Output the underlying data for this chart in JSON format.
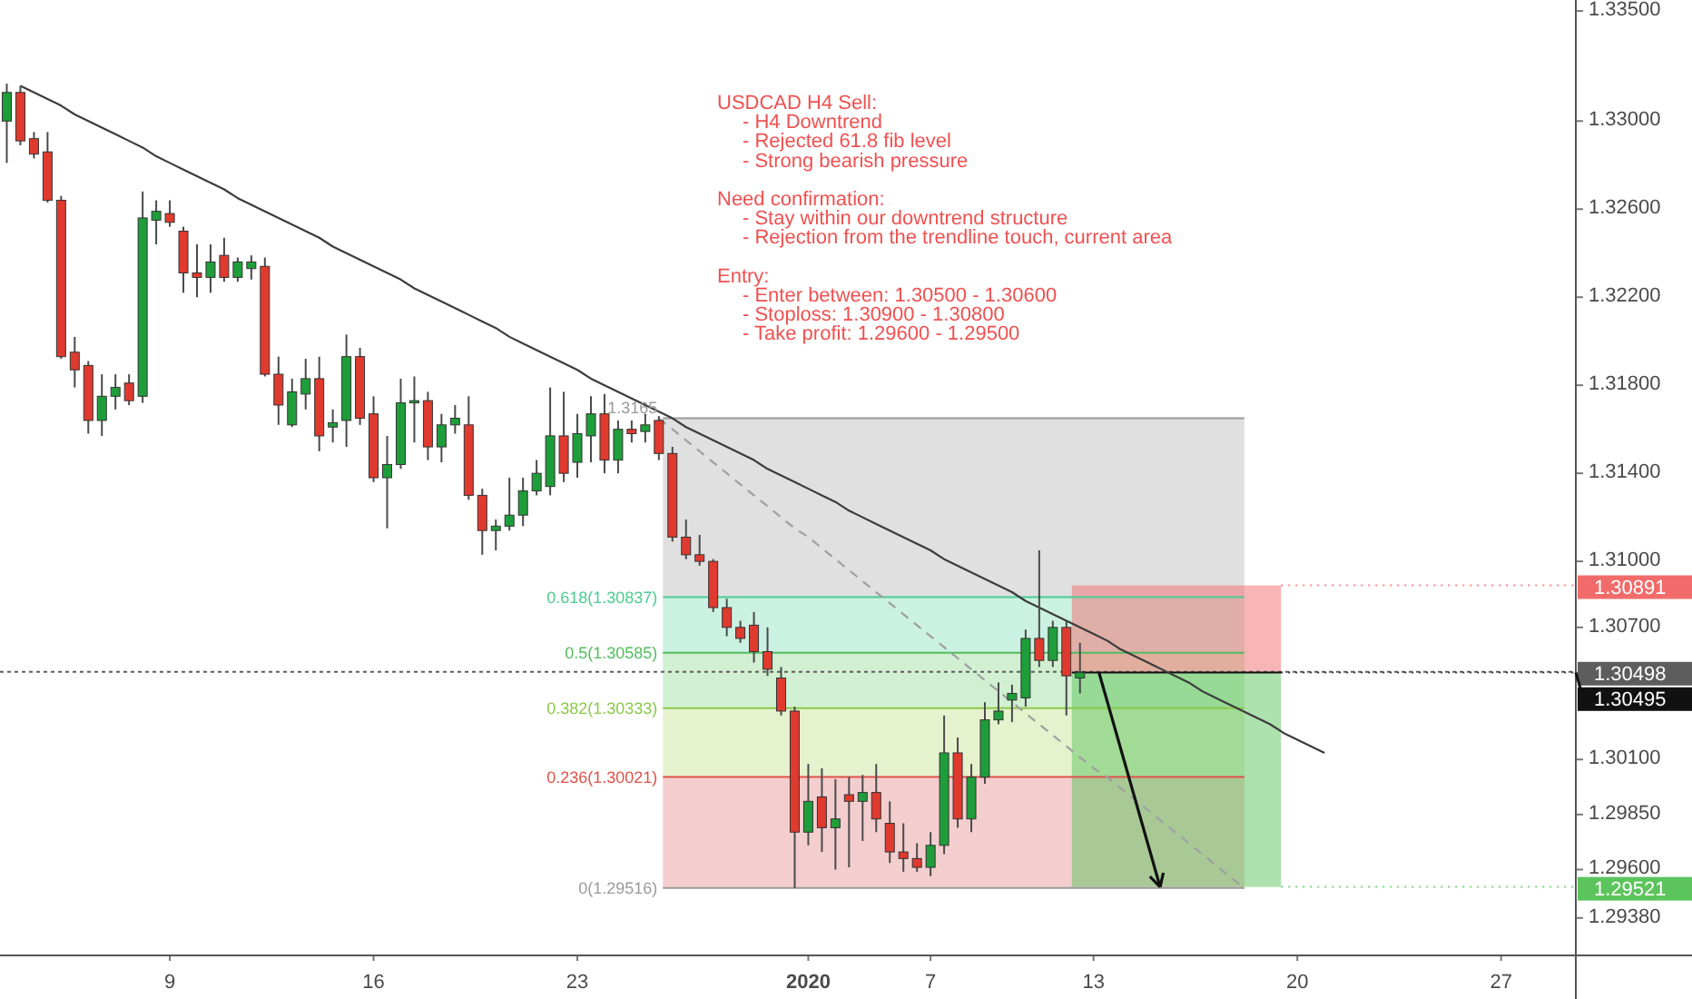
{
  "chart_data": {
    "type": "candlestick",
    "categories": [
      null,
      null,
      null,
      null,
      null,
      null,
      null,
      null,
      null,
      null,
      null,
      null,
      "9",
      null,
      null,
      null,
      null,
      null,
      null,
      null,
      null,
      null,
      null,
      null,
      null,
      null,
      null,
      "16",
      null,
      null,
      null,
      null,
      null,
      null,
      null,
      null,
      null,
      null,
      null,
      null,
      null,
      null,
      "23",
      null,
      null,
      null,
      null,
      null,
      null,
      null,
      null,
      null,
      null,
      null,
      null,
      null,
      null,
      null,
      null,
      "2020",
      null,
      null,
      null,
      null,
      null,
      null,
      null,
      null,
      "7",
      null,
      null,
      null,
      null,
      null,
      null,
      null,
      null,
      null,
      null,
      null,
      "13",
      null,
      null,
      null,
      null,
      null,
      null,
      null,
      null,
      null,
      null,
      null,
      null,
      null,
      null,
      "20",
      null,
      null,
      null,
      null,
      null,
      null,
      null,
      null,
      null,
      null,
      null,
      null,
      null,
      null,
      "27",
      null,
      null,
      null,
      null,
      null
    ],
    "ohlc": [
      [
        1.33,
        1.3317,
        1.3281,
        1.3313
      ],
      [
        1.3313,
        1.3316,
        1.3289,
        1.3291
      ],
      [
        1.3292,
        1.3295,
        1.3283,
        1.3285
      ],
      [
        1.3286,
        1.3295,
        1.3263,
        1.3264
      ],
      [
        1.3264,
        1.3266,
        1.3192,
        1.3193
      ],
      [
        1.3195,
        1.3202,
        1.3179,
        1.3187
      ],
      [
        1.3189,
        1.3191,
        1.3158,
        1.3164
      ],
      [
        1.3164,
        1.3185,
        1.3157,
        1.3175
      ],
      [
        1.3175,
        1.3185,
        1.3169,
        1.3179
      ],
      [
        1.3181,
        1.3185,
        1.3171,
        1.3173
      ],
      [
        1.3175,
        1.3268,
        1.3172,
        1.3256
      ],
      [
        1.3255,
        1.3264,
        1.3244,
        1.3259
      ],
      [
        1.3258,
        1.3264,
        1.3252,
        1.3254
      ],
      [
        1.325,
        1.3252,
        1.3222,
        1.3231
      ],
      [
        1.3231,
        1.3244,
        1.322,
        1.3229
      ],
      [
        1.3229,
        1.3244,
        1.3222,
        1.3236
      ],
      [
        1.3239,
        1.3247,
        1.3227,
        1.3229
      ],
      [
        1.3229,
        1.3238,
        1.3227,
        1.3236
      ],
      [
        1.3233,
        1.3239,
        1.3228,
        1.3236
      ],
      [
        1.3234,
        1.3238,
        1.3184,
        1.3185
      ],
      [
        1.3185,
        1.3193,
        1.3162,
        1.3171
      ],
      [
        1.3162,
        1.3183,
        1.3161,
        1.3177
      ],
      [
        1.3176,
        1.3192,
        1.3169,
        1.3183
      ],
      [
        1.3183,
        1.3193,
        1.315,
        1.3157
      ],
      [
        1.3161,
        1.3169,
        1.3154,
        1.3163
      ],
      [
        1.3164,
        1.3203,
        1.3152,
        1.3193
      ],
      [
        1.3193,
        1.3197,
        1.3162,
        1.3165
      ],
      [
        1.3167,
        1.3175,
        1.3136,
        1.3138
      ],
      [
        1.3138,
        1.3157,
        1.3115,
        1.3144
      ],
      [
        1.3144,
        1.3183,
        1.3142,
        1.3172
      ],
      [
        1.3172,
        1.3184,
        1.3154,
        1.3173
      ],
      [
        1.3173,
        1.3177,
        1.3146,
        1.3152
      ],
      [
        1.3152,
        1.3167,
        1.3145,
        1.3162
      ],
      [
        1.3162,
        1.3171,
        1.3158,
        1.3165
      ],
      [
        1.3162,
        1.3175,
        1.3128,
        1.313
      ],
      [
        1.313,
        1.3133,
        1.3103,
        1.3114
      ],
      [
        1.3114,
        1.3119,
        1.3105,
        1.3116
      ],
      [
        1.3116,
        1.3138,
        1.3114,
        1.3121
      ],
      [
        1.3121,
        1.3138,
        1.3116,
        1.3132
      ],
      [
        1.3132,
        1.3146,
        1.313,
        1.314
      ],
      [
        1.3134,
        1.3179,
        1.313,
        1.3157
      ],
      [
        1.3157,
        1.3177,
        1.3136,
        1.314
      ],
      [
        1.3145,
        1.3167,
        1.3138,
        1.3158
      ],
      [
        1.3157,
        1.3175,
        1.3145,
        1.3167
      ],
      [
        1.3167,
        1.3176,
        1.314,
        1.3146
      ],
      [
        1.3146,
        1.3164,
        1.314,
        1.316
      ],
      [
        1.316,
        1.3164,
        1.3154,
        1.3158
      ],
      [
        1.3159,
        1.3167,
        1.3154,
        1.3162
      ],
      [
        1.3164,
        1.3166,
        1.3146,
        1.3149
      ],
      [
        1.3149,
        1.3152,
        1.3109,
        1.3111
      ],
      [
        1.3111,
        1.3119,
        1.3101,
        1.3103
      ],
      [
        1.3103,
        1.3112,
        1.3098,
        1.31
      ],
      [
        1.31,
        1.3101,
        1.3077,
        1.3079
      ],
      [
        1.3079,
        1.3083,
        1.3066,
        1.307
      ],
      [
        1.307,
        1.3073,
        1.3063,
        1.3065
      ],
      [
        1.3071,
        1.3077,
        1.3054,
        1.3059
      ],
      [
        1.3059,
        1.307,
        1.3048,
        1.3051
      ],
      [
        1.3047,
        1.3052,
        1.303,
        1.3032
      ],
      [
        1.3032,
        1.3034,
        1.29516,
        1.2977
      ],
      [
        1.2977,
        1.3008,
        1.2971,
        1.2991
      ],
      [
        1.2993,
        1.3006,
        1.2968,
        1.2979
      ],
      [
        1.2979,
        1.3001,
        1.296,
        1.2983
      ],
      [
        1.2994,
        1.3002,
        1.2961,
        1.2991
      ],
      [
        1.2991,
        1.3003,
        1.2973,
        1.2995
      ],
      [
        1.2995,
        1.3008,
        1.2977,
        1.2983
      ],
      [
        1.2981,
        1.2991,
        1.2963,
        1.2968
      ],
      [
        1.2968,
        1.2981,
        1.2959,
        1.2965
      ],
      [
        1.2965,
        1.2972,
        1.2959,
        1.2961
      ],
      [
        1.2961,
        1.2977,
        1.2957,
        1.2971
      ],
      [
        1.2971,
        1.303,
        1.2967,
        1.3013
      ],
      [
        1.3013,
        1.302,
        1.2979,
        1.2983
      ],
      [
        1.2983,
        1.3008,
        1.2977,
        1.3002
      ],
      [
        1.3002,
        1.3036,
        1.2999,
        1.3028
      ],
      [
        1.3028,
        1.3045,
        1.3026,
        1.3032
      ],
      [
        1.3037,
        1.3044,
        1.3027,
        1.304
      ],
      [
        1.3038,
        1.3069,
        1.3034,
        1.3065
      ],
      [
        1.3065,
        1.3105,
        1.3052,
        1.3055
      ],
      [
        1.3055,
        1.3073,
        1.3052,
        1.307
      ],
      [
        1.307,
        1.3073,
        1.303,
        1.3048
      ],
      [
        1.3047,
        1.3063,
        1.304,
        1.30495
      ],
      null,
      null,
      null,
      null,
      null,
      null,
      null,
      null,
      null,
      null,
      null,
      null,
      null,
      null,
      null,
      null,
      null,
      null,
      null,
      null,
      null,
      null,
      null,
      null,
      null,
      null,
      null,
      null,
      null,
      null,
      null,
      null,
      null,
      null,
      null,
      null
    ],
    "colors": [
      "#1e9e3a",
      "#e03a2f",
      "#e03a2f",
      "#e03a2f",
      "#e03a2f",
      "#e03a2f",
      "#e03a2f",
      "#1e9e3a",
      "#1e9e3a",
      "#e03a2f",
      "#1e9e3a",
      "#1e9e3a",
      "#e03a2f",
      "#e03a2f",
      "#e03a2f",
      "#1e9e3a",
      "#e03a2f",
      "#1e9e3a",
      "#1e9e3a",
      "#e03a2f",
      "#e03a2f",
      "#1e9e3a",
      "#1e9e3a",
      "#e03a2f",
      "#1e9e3a",
      "#1e9e3a",
      "#e03a2f",
      "#e03a2f",
      "#1e9e3a",
      "#1e9e3a",
      "#1e9e3a",
      "#e03a2f",
      "#1e9e3a",
      "#1e9e3a",
      "#e03a2f",
      "#e03a2f",
      "#1e9e3a",
      "#1e9e3a",
      "#1e9e3a",
      "#1e9e3a",
      "#1e9e3a",
      "#e03a2f",
      "#1e9e3a",
      "#1e9e3a",
      "#e03a2f",
      "#1e9e3a",
      "#e03a2f",
      "#1e9e3a",
      "#e03a2f",
      "#e03a2f",
      "#e03a2f",
      "#e03a2f",
      "#e03a2f",
      "#e03a2f",
      "#e03a2f",
      "#e03a2f",
      "#e03a2f",
      "#e03a2f",
      "#e03a2f",
      "#1e9e3a",
      "#e03a2f",
      "#1e9e3a",
      "#e03a2f",
      "#1e9e3a",
      "#e03a2f",
      "#e03a2f",
      "#e03a2f",
      "#e03a2f",
      "#1e9e3a",
      "#1e9e3a",
      "#e03a2f",
      "#1e9e3a",
      "#1e9e3a",
      "#1e9e3a",
      "#1e9e3a",
      "#1e9e3a",
      "#e03a2f",
      "#1e9e3a",
      "#e03a2f",
      "#1e9e3a",
      null,
      null,
      null,
      null,
      null,
      null,
      null,
      null,
      null,
      null,
      null,
      null,
      null,
      null,
      null,
      null,
      null,
      null,
      null,
      null,
      null,
      null,
      null,
      null,
      null,
      null,
      null,
      null,
      null,
      null,
      null,
      null,
      null,
      null,
      null,
      null
    ],
    "series": [
      {
        "type": "line",
        "values": [
          null,
          1.3316,
          1.3313,
          1.331,
          1.3307,
          1.3303,
          1.33,
          1.3297,
          1.3294,
          1.3291,
          1.3288,
          1.3284,
          1.3281,
          1.3278,
          1.3275,
          1.3272,
          1.3269,
          1.3265,
          1.3262,
          1.3259,
          1.3256,
          1.3253,
          1.325,
          1.3247,
          1.3243,
          1.324,
          1.3237,
          1.3234,
          1.3231,
          1.3228,
          1.3224,
          1.3221,
          1.3218,
          1.3215,
          1.3212,
          1.3209,
          1.3206,
          1.3202,
          1.3199,
          1.3196,
          1.3193,
          1.319,
          1.3187,
          1.3183,
          1.318,
          1.3177,
          1.3174,
          1.3171,
          1.3168,
          1.3165,
          1.3161,
          1.3158,
          1.3155,
          1.3152,
          1.3149,
          1.3146,
          1.3142,
          1.3139,
          1.3136,
          1.3133,
          1.313,
          1.3127,
          1.3123,
          1.312,
          1.3117,
          1.3114,
          1.3111,
          1.3108,
          1.3105,
          1.3101,
          1.3098,
          1.3095,
          1.3092,
          1.3089,
          1.3086,
          1.3082,
          1.3079,
          1.3076,
          1.3073,
          1.307,
          1.3067,
          1.3064,
          1.306,
          1.3057,
          1.3054,
          1.3051,
          1.3048,
          1.3045,
          1.3041,
          1.3038,
          1.3035,
          1.3032,
          1.3029,
          1.3026,
          1.3022,
          1.3019,
          1.3016,
          1.3013,
          null,
          null,
          null,
          null,
          null,
          null,
          null,
          null,
          null,
          null,
          null,
          null,
          null,
          null,
          null,
          null,
          null,
          null
        ],
        "color": "#3c3c3c",
        "line_style": "solid"
      },
      {
        "type": "line",
        "values": [
          null,
          null,
          null,
          null,
          null,
          null,
          null,
          null,
          null,
          null,
          null,
          null,
          null,
          null,
          null,
          null,
          null,
          null,
          null,
          null,
          null,
          null,
          null,
          null,
          null,
          null,
          null,
          null,
          null,
          null,
          null,
          null,
          null,
          null,
          null,
          null,
          null,
          null,
          null,
          null,
          null,
          null,
          null,
          null,
          null,
          null,
          null,
          null,
          1.3165,
          1.316,
          1.3155,
          1.315,
          1.3145,
          1.314,
          1.3135,
          1.313,
          1.3125,
          1.312,
          1.3115,
          1.3111,
          1.3106,
          1.3101,
          1.3096,
          1.3091,
          1.3086,
          1.3081,
          1.3076,
          1.3071,
          1.3066,
          1.3061,
          1.3056,
          1.3051,
          1.3046,
          1.3041,
          1.3036,
          1.3031,
          1.3026,
          1.3021,
          1.3016,
          1.3011,
          1.3006,
          1.3002,
          1.2997,
          1.2992,
          1.2987,
          1.2982,
          1.2977,
          1.2972,
          1.2967,
          1.2962,
          1.2957,
          1.2952,
          null,
          null,
          null,
          null,
          null,
          null,
          null,
          null,
          null,
          null,
          null,
          null,
          null,
          null,
          null,
          null,
          null,
          null,
          null,
          null,
          null,
          null,
          null,
          null
        ],
        "color": "#a0a0a0",
        "line_style": "dashed"
      }
    ],
    "ylim": [
      1.2921,
      1.3355
    ],
    "yticks": [
      {
        "value": 1.335,
        "label": "1.33500"
      },
      {
        "value": 1.33,
        "label": "1.33000"
      },
      {
        "value": 1.326,
        "label": "1.32600"
      },
      {
        "value": 1.322,
        "label": "1.32200"
      },
      {
        "value": 1.318,
        "label": "1.31800"
      },
      {
        "value": 1.314,
        "label": "1.31400"
      },
      {
        "value": 1.31,
        "label": "1.31000"
      },
      {
        "value": 1.307,
        "label": "1.30700"
      },
      {
        "value": 1.301,
        "label": "1.30100"
      },
      {
        "value": 1.2985,
        "label": "1.29850"
      },
      {
        "value": 1.296,
        "label": "1.29600"
      },
      {
        "value": 1.2938,
        "label": "1.29380"
      }
    ],
    "bands": [
      {
        "axis": "y",
        "from": 1.30837,
        "to": 1.3165,
        "color": "#dadada"
      },
      {
        "axis": "y",
        "from": 1.30585,
        "to": 1.30837,
        "color": "#c2eedd"
      },
      {
        "axis": "y",
        "from": 1.30333,
        "to": 1.30585,
        "color": "#c8edc9"
      },
      {
        "axis": "y",
        "from": 1.30021,
        "to": 1.30333,
        "color": "#e2f0c6"
      },
      {
        "axis": "y",
        "from": 1.29516,
        "to": 1.30021,
        "color": "#f2c6c6"
      },
      {
        "axis": "y",
        "from": 1.30495,
        "to": 1.30891,
        "color": "#f26b6b",
        "label": "1.30891"
      },
      {
        "axis": "y",
        "from": 1.29521,
        "to": 1.30495,
        "color": "#5cc45c",
        "label": "1.29521"
      }
    ],
    "ref_lines": [
      {
        "axis": "y",
        "value": 1.3165,
        "label": "1.3165",
        "color": "#9a9a9a"
      },
      {
        "axis": "y",
        "value": 1.30837,
        "label": "0.618(1.30837)",
        "color": "#4dcc8f"
      },
      {
        "axis": "y",
        "value": 1.30585,
        "label": "0.5(1.30585)",
        "color": "#52bd5e"
      },
      {
        "axis": "y",
        "value": 1.30333,
        "label": "0.382(1.30333)",
        "color": "#8cc84b"
      },
      {
        "axis": "y",
        "value": 1.30021,
        "label": "0.236(1.30021)",
        "color": "#e0524a"
      },
      {
        "axis": "y",
        "value": 1.29516,
        "label": "0(1.29516)",
        "color": "#9a9a9a"
      },
      {
        "axis": "y",
        "value": 1.30498,
        "label": "1.30498",
        "color": "#5d5d5d",
        "line_style": "dotted"
      },
      {
        "axis": "y",
        "value": 1.30495,
        "label": "1.30495",
        "color": "#111111"
      }
    ],
    "annotations": [
      "USDCAD H4 Sell:\n- H4 Downtrend\n- Rejected 61.8 fib level\n- Strong bearish pressure",
      "Need confirmation:\n- Stay within our downtrend structure\n- Rejection from the trendline touch, current area",
      "Entry:\n- Enter between: 1.30500 - 1.30600\n- Stoploss: 1.30900 - 1.30800\n- Take profit: 1.29600 - 1.29500"
    ],
    "grid": false
  }
}
